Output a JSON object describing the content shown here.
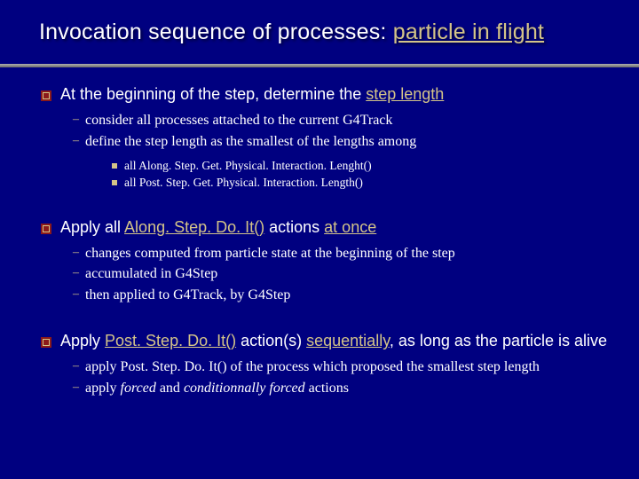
{
  "colors": {
    "background": "#000080",
    "text": "#ffffff",
    "accent": "#d4c488",
    "rule": "#8a8a8a"
  },
  "title": {
    "prefix": "Invocation sequence of processes: ",
    "highlight": "particle in flight",
    "fontsize": 25
  },
  "sections": [
    {
      "main": {
        "prefix": "At the beginning of the step, determine the ",
        "highlight": "step length"
      },
      "subs": [
        {
          "text": "consider all processes attached to the current G4Track"
        },
        {
          "text": "define the step length as the smallest of the lengths among",
          "subsubs": [
            "all Along. Step. Get. Physical. Interaction. Lenght()",
            "all Post. Step. Get. Physical. Interaction. Length()"
          ]
        }
      ]
    },
    {
      "main": {
        "parts": [
          "Apply all ",
          "Along. Step. Do. It()",
          " actions ",
          "at once"
        ]
      },
      "subs": [
        {
          "text": "changes computed from particle state at the beginning of the step"
        },
        {
          "text": "accumulated in G4Step"
        },
        {
          "text": "then applied to G4Track, by G4Step"
        }
      ]
    },
    {
      "main": {
        "parts2": [
          "Apply ",
          "Post. Step. Do. It()",
          " action(s) ",
          "sequentially",
          ", as long as the particle is alive"
        ]
      },
      "subs": [
        {
          "text": "apply Post. Step. Do. It() of the process which proposed the smallest step length"
        },
        {
          "html": "apply <span class=\"italic\">forced</span> and <span class=\"italic\">conditionnally forced</span> actions"
        }
      ]
    }
  ]
}
